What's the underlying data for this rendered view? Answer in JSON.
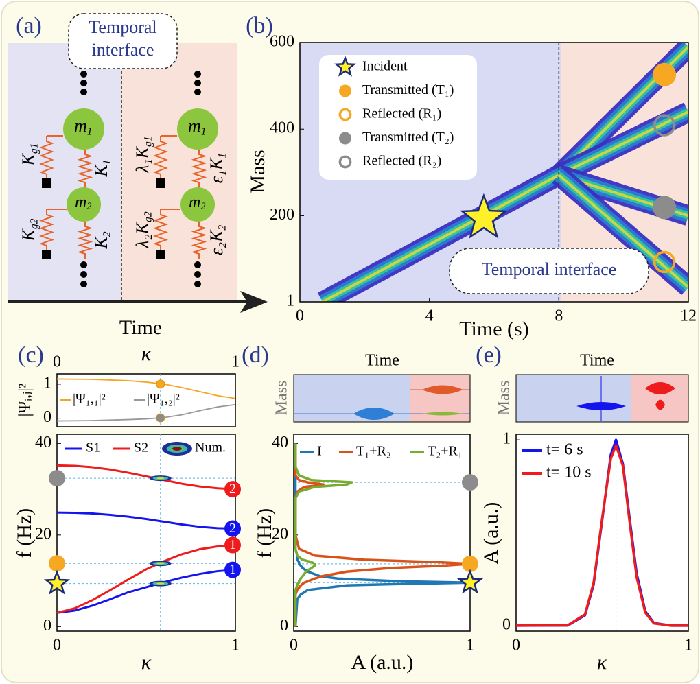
{
  "chart_data": [
    {
      "type": "schematic",
      "label": "(a)",
      "callout": [
        "Temporal",
        "interface"
      ],
      "xlabel": "Time",
      "masses": [
        {
          "base": "m",
          "sub": "1"
        },
        {
          "base": "m",
          "sub": "2"
        }
      ],
      "left_springs": [
        {
          "base": "K",
          "sub": "g1"
        },
        {
          "base": "K",
          "sub": "1"
        },
        {
          "base": "K",
          "sub": "g2"
        },
        {
          "base": "K",
          "sub": "2"
        }
      ],
      "right_springs": [
        {
          "base": "λ₁K",
          "sub": "g1"
        },
        {
          "base": "ε₁K",
          "sub": "1"
        },
        {
          "base": "λ₂K",
          "sub": "g2"
        },
        {
          "base": "ε₂K",
          "sub": "2"
        }
      ]
    },
    {
      "type": "heatmap",
      "label": "(b)",
      "xlabel": "Time (s)",
      "ylabel": "Mass",
      "xlim": [
        0,
        12
      ],
      "xticks": [
        0,
        4,
        8,
        12
      ],
      "ylim": [
        1,
        600
      ],
      "yticks": [
        1,
        200,
        400,
        600
      ],
      "interface_time": 8,
      "annotation": "Temporal interface",
      "beams": [
        {
          "x": [
            0.7,
            8
          ],
          "y": [
            1,
            294
          ]
        },
        {
          "x": [
            8,
            12
          ],
          "y": [
            294,
            590
          ]
        },
        {
          "x": [
            8,
            12
          ],
          "y": [
            294,
            440
          ]
        },
        {
          "x": [
            8,
            12
          ],
          "y": [
            294,
            200
          ]
        },
        {
          "x": [
            8,
            12
          ],
          "y": [
            294,
            35
          ]
        }
      ],
      "markers": [
        {
          "name": "Incident",
          "shape": "star",
          "color": "#fff02a",
          "x": 5.68,
          "y": 194
        },
        {
          "name": "Transmitted (T₁)",
          "shape": "disc",
          "color": "#f7a823",
          "x": 11.26,
          "y": 526
        },
        {
          "name": "Reflected (R₁)",
          "shape": "ring",
          "color": "#f7a823",
          "x": 11.26,
          "y": 93
        },
        {
          "name": "Transmitted (T₂)",
          "shape": "disc",
          "color": "#8c8c8c",
          "x": 11.26,
          "y": 219
        },
        {
          "name": "Reflected (R₂)",
          "shape": "ring",
          "color": "#8c8c8c",
          "x": 11.26,
          "y": 409
        }
      ]
    },
    {
      "type": "line",
      "label": "(c)",
      "xlabel": "κ",
      "ylabel": "|Ψᵢ,ⱼ|²",
      "xlim": [
        0,
        1
      ],
      "xticks": [
        0,
        1
      ],
      "ylim": [
        -0.25,
        1.3
      ],
      "yticks": [
        0,
        1
      ],
      "x": [
        0,
        0.2,
        0.4,
        0.5,
        0.6,
        0.7,
        0.8,
        0.9,
        1
      ],
      "series": [
        {
          "name": "|Ψ₁,₁|²",
          "color": "#f5a623",
          "values": [
            1.15,
            1.14,
            1.1,
            1.06,
            1.0,
            0.9,
            0.78,
            0.66,
            0.58
          ]
        },
        {
          "name": "|Ψ₁,₂|²",
          "color": "#999999",
          "values": [
            -0.08,
            -0.07,
            -0.04,
            -0.02,
            0.02,
            0.1,
            0.22,
            0.33,
            0.4
          ]
        }
      ],
      "markers": [
        {
          "x": 0.58,
          "y": 1.0,
          "color": "#f5a623"
        },
        {
          "x": 0.58,
          "y": 0.01,
          "color": "#8c8c8c"
        }
      ]
    },
    {
      "type": "line",
      "xlabel": "κ",
      "ylabel": "f (Hz)",
      "xlim": [
        0,
        1
      ],
      "xticks": [
        0,
        1
      ],
      "ylim": [
        -1,
        42
      ],
      "yticks": [
        0,
        20,
        40
      ],
      "x": [
        0,
        0.1,
        0.2,
        0.3,
        0.4,
        0.5,
        0.6,
        0.7,
        0.8,
        0.9,
        1
      ],
      "series": [
        {
          "name": "S1",
          "color": "#1414ee",
          "values": [
            [
              3,
              3.5,
              4.6,
              6.0,
              7.5,
              8.6,
              9.7,
              10.7,
              11.5,
              12.1,
              12.4
            ],
            [
              24.9,
              24.85,
              24.7,
              24.4,
              24,
              23.5,
              22.9,
              22.3,
              21.8,
              21.5,
              21.4
            ]
          ]
        },
        {
          "name": "S2",
          "color": "#ee1c1c",
          "values": [
            [
              3,
              4,
              5.8,
              8,
              10.3,
              12.5,
              14.3,
              15.8,
              16.9,
              17.5,
              17.8
            ],
            [
              35.2,
              35.1,
              34.8,
              34.3,
              33.6,
              32.8,
              32.0,
              31.2,
              30.6,
              30.2,
              30.0
            ]
          ]
        }
      ],
      "numerical": "Num.",
      "branch_labels": [
        "1",
        "2"
      ],
      "guides": {
        "x": 0.58,
        "y": [
          32.4,
          13.8,
          9.4
        ]
      },
      "markers": [
        {
          "shape": "disc",
          "color": "#8c8c8c",
          "y": 32.4
        },
        {
          "shape": "disc",
          "color": "#f7a823",
          "y": 13.8
        },
        {
          "shape": "star",
          "color": "#fff02a",
          "y": 9.4
        }
      ]
    },
    {
      "type": "line",
      "label": "(d)",
      "inset": {
        "xlabel": "Time",
        "ylabel": "Mass"
      },
      "xlabel": "A (a.u.)",
      "ylabel": "f (Hz)",
      "xlim": [
        0,
        1
      ],
      "xticks": [
        0,
        1
      ],
      "ylim": [
        -1,
        42
      ],
      "yticks": [
        0,
        20,
        40
      ],
      "f": [
        0,
        6,
        7,
        8,
        9,
        9.3,
        9.6,
        9.9,
        10.5,
        11,
        12,
        12.8,
        13.3,
        13.7,
        14.1,
        14.6,
        15.5,
        17,
        20,
        25,
        28,
        29.5,
        30.5,
        31,
        31.5,
        32,
        33,
        35,
        40
      ],
      "series": [
        {
          "name": "I",
          "color": "#1f77b4",
          "values": [
            0.01,
            0.02,
            0.04,
            0.08,
            0.3,
            0.6,
            1.0,
            0.6,
            0.25,
            0.15,
            0.08,
            0.05,
            0.04,
            0.03,
            0.03,
            0.02,
            0.02,
            0.01,
            0.01,
            0.01,
            0.01,
            0.01,
            0.01,
            0.01,
            0.01,
            0.01,
            0.01,
            0.01,
            0.01
          ]
        },
        {
          "name": "T₁+R₂",
          "color": "#d95319",
          "values": [
            0.01,
            0.01,
            0.01,
            0.02,
            0.04,
            0.05,
            0.06,
            0.08,
            0.12,
            0.16,
            0.3,
            0.55,
            0.85,
            1.0,
            0.8,
            0.4,
            0.12,
            0.03,
            0.01,
            0.01,
            0.01,
            0.02,
            0.06,
            0.17,
            0.08,
            0.03,
            0.01,
            0.01,
            0.01
          ]
        },
        {
          "name": "T₂+R₁",
          "color": "#77ac30",
          "values": [
            0.01,
            0.01,
            0.01,
            0.01,
            0.02,
            0.02,
            0.03,
            0.03,
            0.04,
            0.05,
            0.07,
            0.1,
            0.12,
            0.12,
            0.1,
            0.05,
            0.02,
            0.01,
            0.01,
            0.01,
            0.01,
            0.03,
            0.12,
            0.3,
            0.33,
            0.1,
            0.03,
            0.01,
            0.01
          ]
        }
      ],
      "guides": {
        "y": [
          31.5,
          13.7,
          9.6
        ]
      },
      "markers": [
        {
          "shape": "disc",
          "color": "#8c8c8c",
          "y": 31.5
        },
        {
          "shape": "disc",
          "color": "#f7a823",
          "y": 13.7
        },
        {
          "shape": "star",
          "color": "#fff02a",
          "y": 9.6
        }
      ]
    },
    {
      "type": "line",
      "label": "(e)",
      "inset": {
        "xlabel": "Time",
        "ylabel": "Mass"
      },
      "xlabel": "κ",
      "ylabel": "A (a.u.)",
      "xlim": [
        0,
        1
      ],
      "xticks": [
        0,
        1
      ],
      "ylim": [
        -0.03,
        1.03
      ],
      "yticks": [
        0,
        1
      ],
      "x": [
        0,
        0.3,
        0.4,
        0.45,
        0.5,
        0.55,
        0.58,
        0.62,
        0.66,
        0.7,
        0.75,
        0.8,
        0.9,
        1
      ],
      "series": [
        {
          "name": "t= 6 s",
          "color": "#1414ee",
          "values": [
            0,
            0.001,
            0.056,
            0.22,
            0.57,
            0.92,
            1.0,
            0.87,
            0.57,
            0.28,
            0.077,
            0.014,
            0,
            0
          ]
        },
        {
          "name": "t= 10 s",
          "color": "#ee1c1c",
          "values": [
            0,
            0.002,
            0.06,
            0.23,
            0.58,
            0.9,
            0.97,
            0.86,
            0.55,
            0.26,
            0.07,
            0.012,
            0,
            0
          ]
        }
      ],
      "guides": {
        "x": 0.58
      }
    }
  ]
}
